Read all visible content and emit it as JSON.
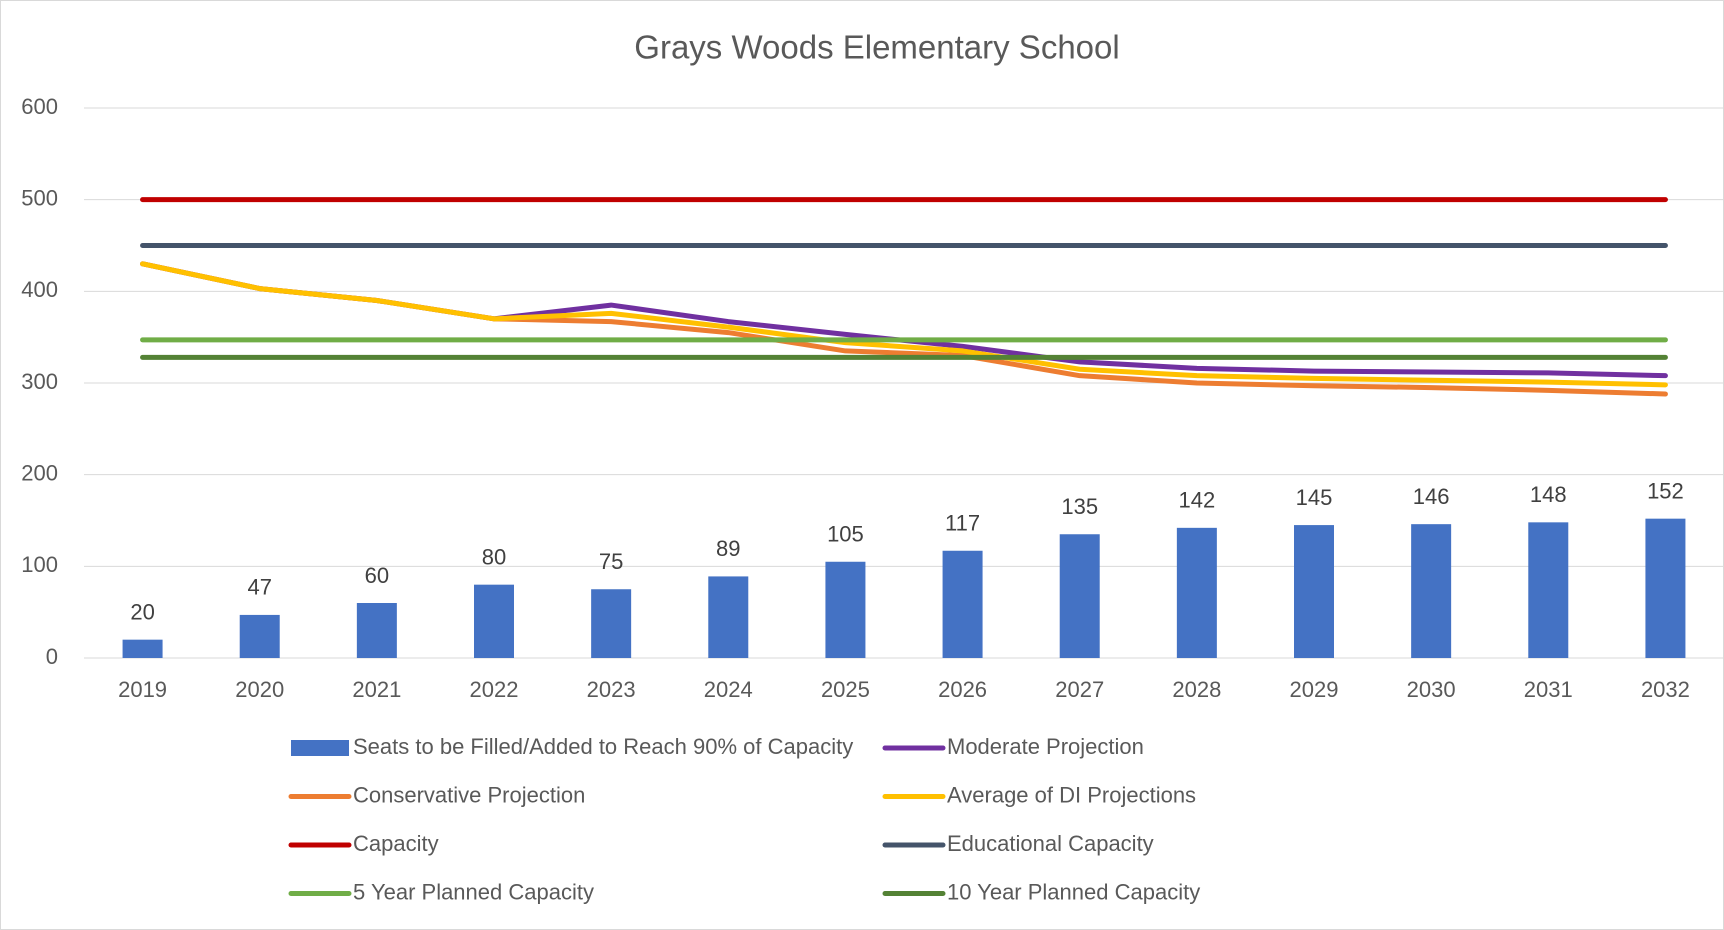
{
  "chart_data": {
    "type": "combo",
    "title": "Grays Woods Elementary School",
    "categories": [
      "2019",
      "2020",
      "2021",
      "2022",
      "2023",
      "2024",
      "2025",
      "2026",
      "2027",
      "2028",
      "2029",
      "2030",
      "2031",
      "2032"
    ],
    "ylim": [
      0,
      600
    ],
    "yticks": [
      0,
      100,
      200,
      300,
      400,
      500,
      600
    ],
    "grid": true,
    "legend": "bottom",
    "series": [
      {
        "name": "Seats to be Filled/Added to Reach 90% of Capacity",
        "type": "bar",
        "color": "#4472c4",
        "values": [
          20,
          47,
          60,
          80,
          75,
          89,
          105,
          117,
          135,
          142,
          145,
          146,
          148,
          152
        ]
      },
      {
        "name": "Moderate Projection",
        "type": "line",
        "color": "#7030a0",
        "values": [
          430,
          403,
          390,
          370,
          385,
          367,
          353,
          340,
          323,
          316,
          313,
          312,
          311,
          308
        ]
      },
      {
        "name": "Conservative Projection",
        "type": "line",
        "color": "#ed7d31",
        "values": [
          430,
          403,
          390,
          370,
          367,
          355,
          335,
          330,
          308,
          300,
          297,
          295,
          292,
          288
        ]
      },
      {
        "name": "Average of DI Projections",
        "type": "line",
        "color": "#ffc000",
        "values": [
          430,
          403,
          390,
          370,
          376,
          361,
          344,
          335,
          315,
          308,
          305,
          303,
          301,
          298
        ]
      },
      {
        "name": "Capacity",
        "type": "line",
        "color": "#c00000",
        "values": [
          500,
          500,
          500,
          500,
          500,
          500,
          500,
          500,
          500,
          500,
          500,
          500,
          500,
          500
        ]
      },
      {
        "name": "Educational Capacity",
        "type": "line",
        "color": "#44546a",
        "values": [
          450,
          450,
          450,
          450,
          450,
          450,
          450,
          450,
          450,
          450,
          450,
          450,
          450,
          450
        ]
      },
      {
        "name": "5 Year Planned Capacity",
        "type": "line",
        "color": "#70ad47",
        "values": [
          347,
          347,
          347,
          347,
          347,
          347,
          347,
          347,
          347,
          347,
          347,
          347,
          347,
          347
        ]
      },
      {
        "name": "10 Year Planned Capacity",
        "type": "line",
        "color": "#548235",
        "values": [
          328,
          328,
          328,
          328,
          328,
          328,
          328,
          328,
          328,
          328,
          328,
          328,
          328,
          328
        ]
      }
    ]
  }
}
